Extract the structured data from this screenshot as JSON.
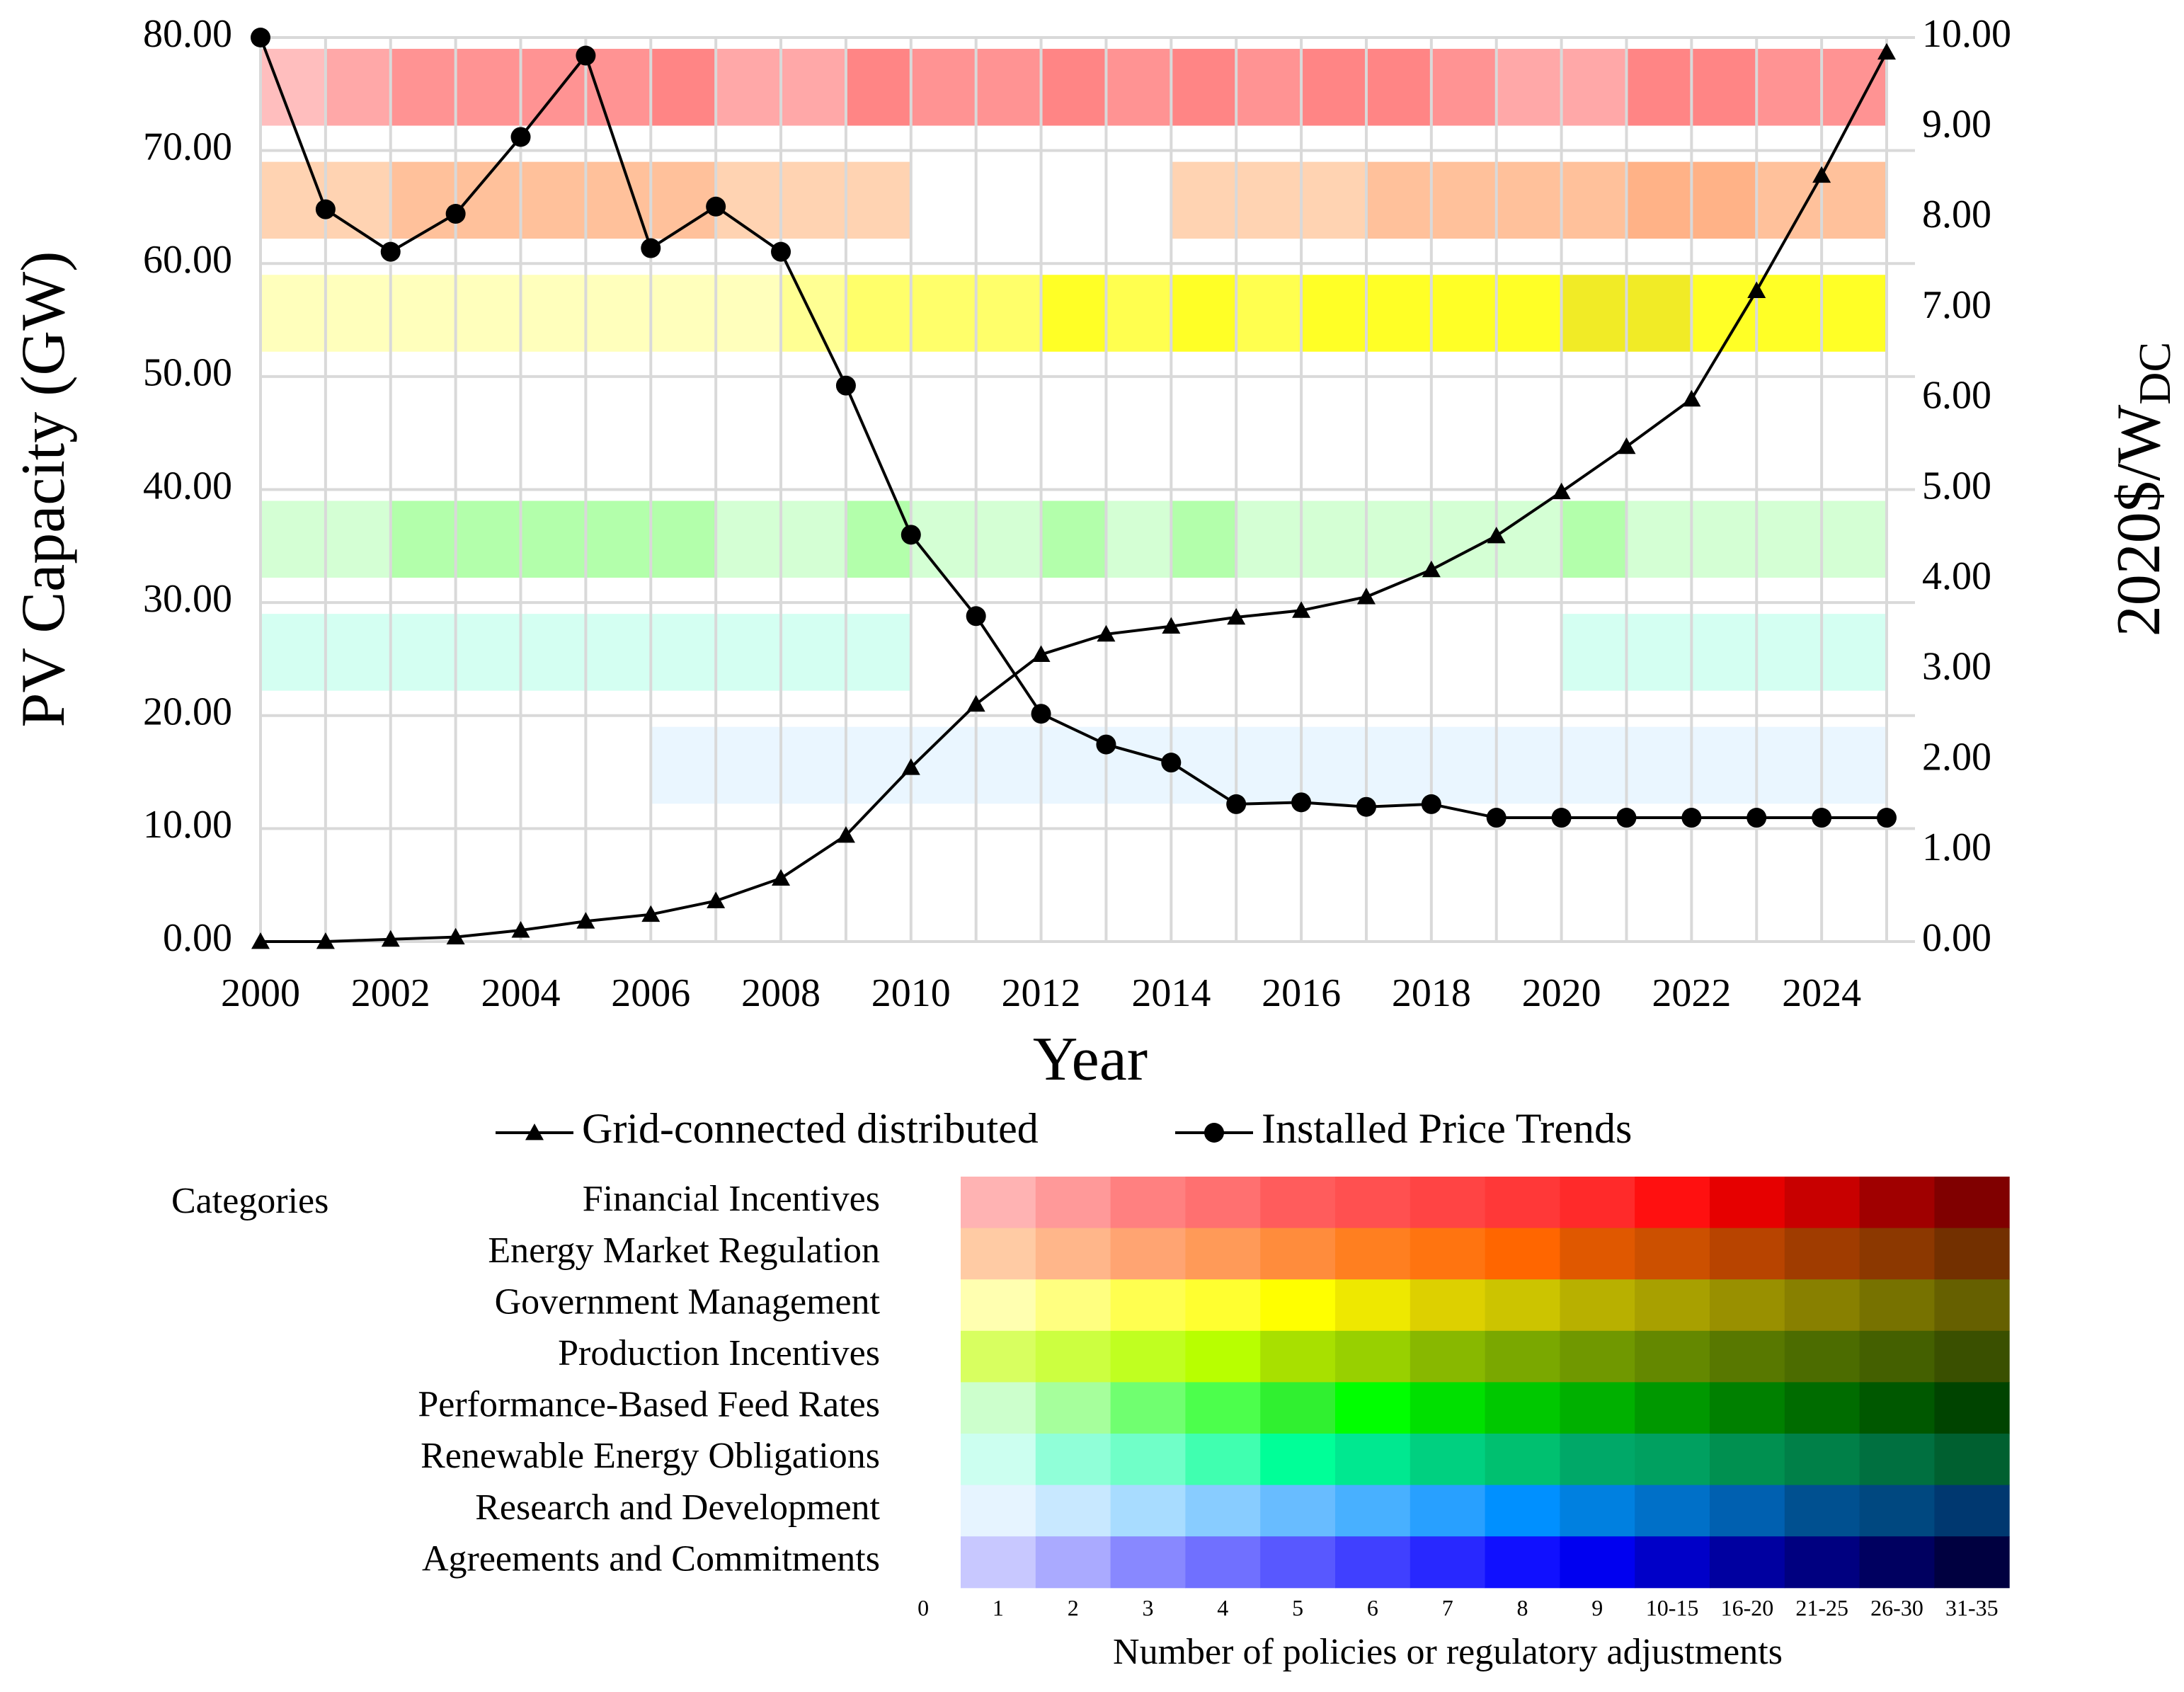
{
  "chart_data": {
    "type": "line",
    "x": [
      2000,
      2001,
      2002,
      2003,
      2004,
      2005,
      2006,
      2007,
      2008,
      2009,
      2010,
      2011,
      2012,
      2013,
      2014,
      2015,
      2016,
      2017,
      2018,
      2019,
      2020,
      2021,
      2022,
      2023,
      2024,
      2025
    ],
    "xlim": [
      2000,
      2025
    ],
    "xticks": [
      2000,
      2002,
      2004,
      2006,
      2008,
      2010,
      2012,
      2014,
      2016,
      2018,
      2020,
      2022,
      2024
    ],
    "ylim": [
      0,
      80
    ],
    "yticks": [
      {
        "value": 0,
        "label": "0.00"
      },
      {
        "value": 10,
        "label": "10.00"
      },
      {
        "value": 20,
        "label": "20.00"
      },
      {
        "value": 30,
        "label": "30.00"
      },
      {
        "value": 40,
        "label": "40.00"
      },
      {
        "value": 50,
        "label": "50.00"
      },
      {
        "value": 60,
        "label": "60.00"
      },
      {
        "value": 70,
        "label": "70.00"
      },
      {
        "value": 80,
        "label": "80.00"
      }
    ],
    "y2lim": [
      0,
      10
    ],
    "y2ticks": [
      {
        "value": 0,
        "label": "0.00"
      },
      {
        "value": 1,
        "label": "1.00"
      },
      {
        "value": 2,
        "label": "2.00"
      },
      {
        "value": 3,
        "label": "3.00"
      },
      {
        "value": 4,
        "label": "4.00"
      },
      {
        "value": 5,
        "label": "5.00"
      },
      {
        "value": 6,
        "label": "6.00"
      },
      {
        "value": 7,
        "label": "7.00"
      },
      {
        "value": 8,
        "label": "8.00"
      },
      {
        "value": 9,
        "label": "9.00"
      },
      {
        "value": 10,
        "label": "10.00"
      }
    ],
    "xlabel": "Year",
    "ylabel": "PV Capacity (GW)",
    "y2label": "2020$/W",
    "y2label_sub": "DC",
    "grid": true,
    "series": [
      {
        "name": "Grid-connected distributed",
        "color": "#000000",
        "marker": "triangle",
        "values": [
          0,
          0,
          0.2,
          0.4,
          1,
          1.8,
          2.4,
          3.6,
          5.6,
          9.4,
          15.4,
          21,
          25.4,
          27.2,
          27.9,
          28.7,
          29.3,
          30.5,
          32.9,
          35.9,
          39.8,
          43.8,
          48,
          57.6,
          67.8,
          78.7
        ]
      },
      {
        "name": "Installed Price Trends",
        "color": "#000000",
        "marker": "circle",
        "axis": "y2",
        "values": [
          10,
          8.1,
          7.63,
          8.05,
          8.9,
          9.8,
          7.67,
          8.13,
          7.63,
          6.15,
          4.5,
          3.6,
          2.52,
          2.18,
          1.98,
          1.52,
          1.54,
          1.49,
          1.52,
          1.37,
          1.37,
          1.37,
          1.37,
          1.37,
          1.37,
          1.37
        ]
      }
    ],
    "policy_title": "Categories",
    "policy_xlabel": "Number of policies or regulatory adjustments",
    "policy_scale": [
      0,
      1,
      2,
      3,
      4,
      5,
      6,
      7,
      8,
      9,
      "10-15",
      "16-20",
      "21-25",
      "26-30",
      "31-35"
    ],
    "policies": [
      {
        "name": "Financial Incentives",
        "colors": [
          "#ffb3b3",
          "#ff9999",
          "#ff8080",
          "#ff7070",
          "#ff5c5c",
          "#ff5050",
          "#ff4444",
          "#ff3838",
          "#ff2a2a",
          "#ff1010",
          "#e60000",
          "#c80000",
          "#a00000",
          "#800000"
        ],
        "levels": [
          1,
          2,
          3,
          3,
          3,
          3,
          4,
          2,
          2,
          4,
          3,
          3,
          4,
          3,
          4,
          3,
          4,
          4,
          3,
          2,
          2,
          4,
          4,
          3,
          3
        ]
      },
      {
        "name": "Energy Market Regulation",
        "colors": [
          "#ffcba4",
          "#ffb68a",
          "#ffa472",
          "#ff9a58",
          "#ff8c3c",
          "#ff7f20",
          "#ff7410",
          "#ff6600",
          "#e05800",
          "#cc5000",
          "#b84400",
          "#a03c00",
          "#8c3800",
          "#733000"
        ],
        "levels": [
          1,
          1,
          2,
          2,
          2,
          2,
          2,
          1,
          1,
          1,
          0,
          0,
          0,
          0,
          1,
          1,
          1,
          2,
          2,
          2,
          2,
          3,
          3,
          2,
          2
        ]
      },
      {
        "name": "Government Management",
        "colors": [
          "#ffffb0",
          "#ffff80",
          "#ffff50",
          "#ffff30",
          "#ffff00",
          "#eee800",
          "#ddd000",
          "#ccc400",
          "#b8b000",
          "#a8a000",
          "#999000",
          "#888000",
          "#777200",
          "#666000"
        ],
        "levels": [
          1,
          1,
          1,
          1,
          1,
          1,
          1,
          1,
          2,
          3,
          3,
          3,
          5,
          4,
          5,
          4,
          5,
          5,
          5,
          5,
          6,
          6,
          5,
          5,
          5
        ]
      },
      {
        "name": "Production Incentives",
        "colors": [
          "#d8ff60",
          "#ccff40",
          "#c0ff20",
          "#b8ff00",
          "#a8e000",
          "#98d000",
          "#88b800",
          "#7aa800",
          "#709800",
          "#648800",
          "#587800",
          "#4c6c00",
          "#446000",
          "#3a5000"
        ],
        "levels": [
          0,
          0,
          0,
          0,
          0,
          0,
          0,
          0,
          0,
          0,
          0,
          0,
          0,
          0,
          0,
          0,
          0,
          0,
          0,
          0,
          0,
          0,
          0,
          0,
          0
        ]
      },
      {
        "name": "Performance-Based Feed Rates",
        "colors": [
          "#ccffcc",
          "#a6ff9c",
          "#70ff70",
          "#4cff4c",
          "#30f030",
          "#00ff00",
          "#00e000",
          "#00c800",
          "#00b000",
          "#009800",
          "#008000",
          "#006c00",
          "#005800",
          "#004400"
        ],
        "levels": [
          1,
          1,
          2,
          2,
          2,
          2,
          2,
          1,
          1,
          2,
          1,
          1,
          2,
          1,
          2,
          1,
          1,
          1,
          1,
          1,
          2,
          1,
          1,
          1,
          1
        ]
      },
      {
        "name": "Renewable Energy Obligations",
        "colors": [
          "#ccfff0",
          "#90ffd8",
          "#70ffc8",
          "#40ffb0",
          "#00ff98",
          "#00e890",
          "#00d080",
          "#00c070",
          "#00a868",
          "#00a060",
          "#009050",
          "#008048",
          "#007040",
          "#006030"
        ],
        "levels": [
          1,
          1,
          1,
          1,
          1,
          1,
          1,
          1,
          1,
          1,
          0,
          0,
          0,
          0,
          0,
          0,
          0,
          0,
          0,
          0,
          1,
          1,
          1,
          1,
          1
        ]
      },
      {
        "name": "Research and Development",
        "colors": [
          "#e6f4ff",
          "#c8e8ff",
          "#a8dcff",
          "#88ccff",
          "#68bcff",
          "#48b0ff",
          "#28a0ff",
          "#0090ff",
          "#0080e0",
          "#0070c8",
          "#0060b0",
          "#005090",
          "#004880",
          "#003870"
        ],
        "levels": [
          0,
          0,
          0,
          0,
          0,
          0,
          1,
          1,
          1,
          1,
          1,
          1,
          1,
          1,
          1,
          1,
          1,
          1,
          1,
          1,
          1,
          1,
          1,
          1,
          1
        ]
      },
      {
        "name": "Agreements and Commitments",
        "colors": [
          "#c8c8ff",
          "#aaaaff",
          "#8888ff",
          "#7070ff",
          "#5858ff",
          "#4040ff",
          "#2828ff",
          "#1010ff",
          "#0000f0",
          "#0000c8",
          "#0000a0",
          "#000080",
          "#000060",
          "#000040"
        ],
        "levels": [
          0,
          0,
          0,
          0,
          0,
          0,
          0,
          0,
          0,
          0,
          0,
          0,
          0,
          0,
          0,
          0,
          0,
          0,
          0,
          0,
          0,
          0,
          0,
          0,
          0
        ]
      }
    ]
  }
}
